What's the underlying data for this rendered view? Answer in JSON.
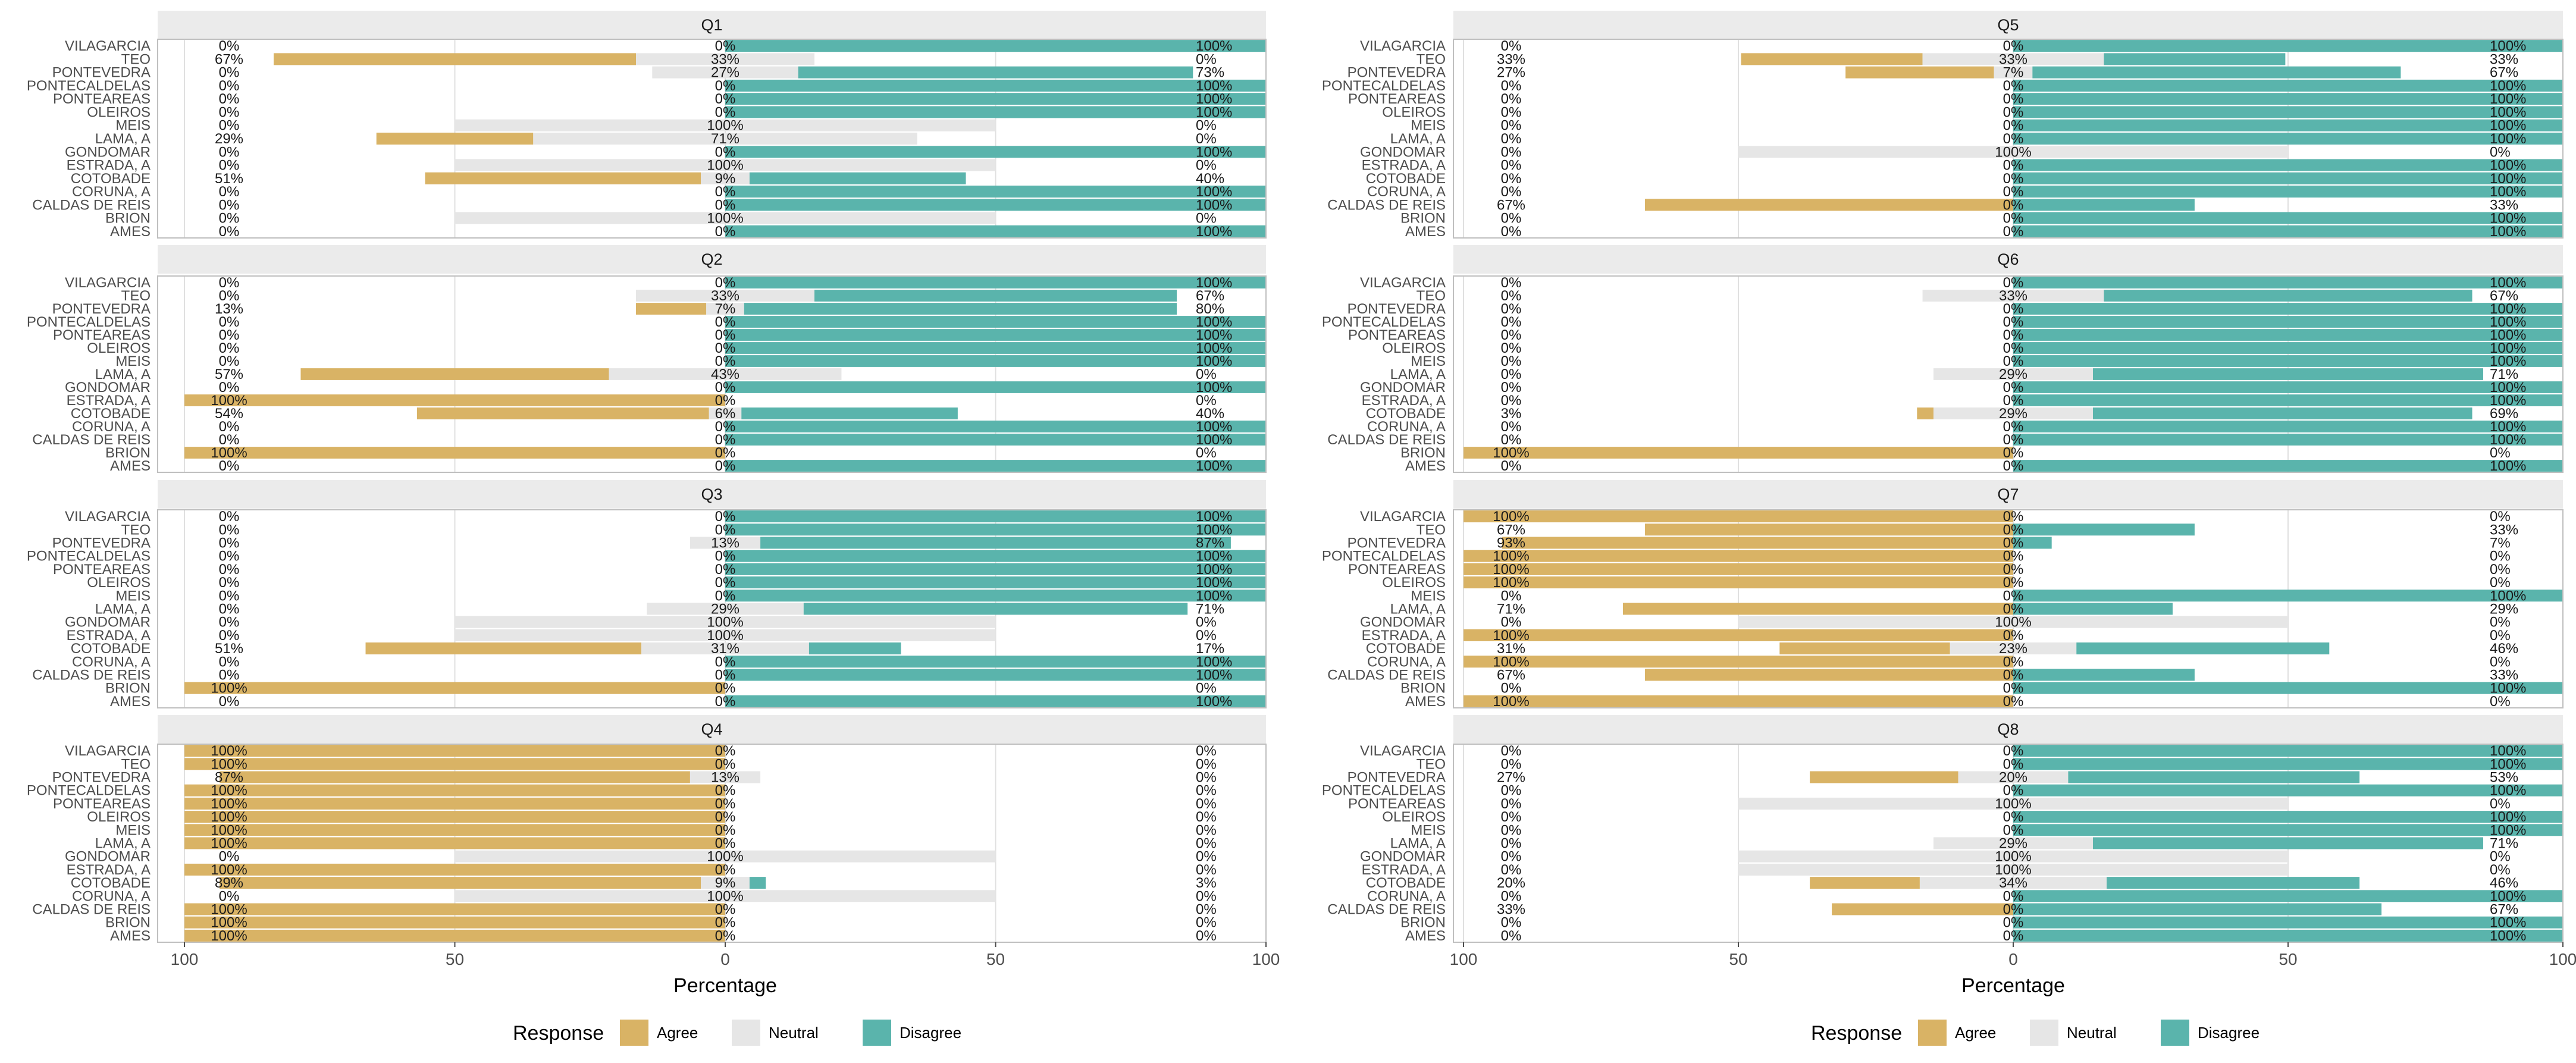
{
  "chart_data": {
    "type": "bar",
    "subtype": "diverging-stacked-horizontal",
    "municipalities": [
      "VILAGARCIA",
      "TEO",
      "PONTEVEDRA",
      "PONTECALDELAS",
      "PONTEAREAS",
      "OLEIROS",
      "MEIS",
      "LAMA, A",
      "GONDOMAR",
      "ESTRADA, A",
      "COTOBADE",
      "CORUNA, A",
      "CALDAS DE REIS",
      "BRION",
      "AMES"
    ],
    "xlabel": "Percentage",
    "xlim": [
      -100,
      100
    ],
    "x_ticks": [
      -100,
      -50,
      0,
      50,
      100
    ],
    "x_tick_labels": [
      "100",
      "50",
      "0",
      "50",
      "100"
    ],
    "legend": {
      "title": "Response",
      "position": "bottom",
      "items": [
        {
          "label": "Agree",
          "color": "#D9B365"
        },
        {
          "label": "Neutral",
          "color": "#E6E6E6"
        },
        {
          "label": "Disagree",
          "color": "#5AB4AC"
        }
      ]
    },
    "colors": {
      "agree": "#D9B365",
      "neutral": "#E6E6E6",
      "disagree": "#5AB4AC",
      "strip": "#EBEBEB",
      "grid": "#E0E0E0",
      "text": "#4D4D4D"
    },
    "panels": [
      {
        "title": "Q1",
        "agree": [
          0,
          67,
          0,
          0,
          0,
          0,
          0,
          29,
          0,
          0,
          51,
          0,
          0,
          0,
          0
        ],
        "neutral": [
          0,
          33,
          27,
          0,
          0,
          0,
          100,
          71,
          0,
          100,
          9,
          0,
          0,
          100,
          0
        ],
        "disagree": [
          100,
          0,
          73,
          100,
          100,
          100,
          0,
          0,
          100,
          0,
          40,
          100,
          100,
          0,
          100
        ],
        "agree_labels": [
          "0%",
          "67%",
          "0%",
          "0%",
          "0%",
          "0%",
          "0%",
          "29%",
          "0%",
          "0%",
          "51%",
          "0%",
          "0%",
          "0%",
          "0%"
        ],
        "neutral_labels": [
          "0%",
          "33%",
          "27%",
          "0%",
          "0%",
          "0%",
          "100%",
          "71%",
          "0%",
          "100%",
          "9%",
          "0%",
          "0%",
          "100%",
          "0%"
        ],
        "disagree_labels": [
          "100%",
          "0%",
          "73%",
          "100%",
          "100%",
          "100%",
          "0%",
          "0%",
          "100%",
          "0%",
          "40%",
          "100%",
          "100%",
          "0%",
          "100%"
        ]
      },
      {
        "title": "Q5",
        "agree": [
          0,
          33,
          27,
          0,
          0,
          0,
          0,
          0,
          0,
          0,
          0,
          0,
          67,
          0,
          0
        ],
        "neutral": [
          0,
          33,
          7,
          0,
          0,
          0,
          0,
          0,
          100,
          0,
          0,
          0,
          0,
          0,
          0
        ],
        "disagree": [
          100,
          33,
          67,
          100,
          100,
          100,
          100,
          100,
          0,
          100,
          100,
          100,
          33,
          100,
          100
        ],
        "agree_labels": [
          "0%",
          "33%",
          "27%",
          "0%",
          "0%",
          "0%",
          "0%",
          "0%",
          "0%",
          "0%",
          "0%",
          "0%",
          "67%",
          "0%",
          "0%"
        ],
        "neutral_labels": [
          "0%",
          "33%",
          "7%",
          "0%",
          "0%",
          "0%",
          "0%",
          "0%",
          "100%",
          "0%",
          "0%",
          "0%",
          "0%",
          "0%",
          "0%"
        ],
        "disagree_labels": [
          "100%",
          "33%",
          "67%",
          "100%",
          "100%",
          "100%",
          "100%",
          "100%",
          "0%",
          "100%",
          "100%",
          "100%",
          "33%",
          "100%",
          "100%"
        ]
      },
      {
        "title": "Q2",
        "agree": [
          0,
          0,
          13,
          0,
          0,
          0,
          0,
          57,
          0,
          100,
          54,
          0,
          0,
          100,
          0
        ],
        "neutral": [
          0,
          33,
          7,
          0,
          0,
          0,
          0,
          43,
          0,
          0,
          6,
          0,
          0,
          0,
          0
        ],
        "disagree": [
          100,
          67,
          80,
          100,
          100,
          100,
          100,
          0,
          100,
          0,
          40,
          100,
          100,
          0,
          100
        ],
        "agree_labels": [
          "0%",
          "0%",
          "13%",
          "0%",
          "0%",
          "0%",
          "0%",
          "57%",
          "0%",
          "100%",
          "54%",
          "0%",
          "0%",
          "100%",
          "0%"
        ],
        "neutral_labels": [
          "0%",
          "33%",
          "7%",
          "0%",
          "0%",
          "0%",
          "0%",
          "43%",
          "0%",
          "0%",
          "6%",
          "0%",
          "0%",
          "0%",
          "0%"
        ],
        "disagree_labels": [
          "100%",
          "67%",
          "80%",
          "100%",
          "100%",
          "100%",
          "100%",
          "0%",
          "100%",
          "0%",
          "40%",
          "100%",
          "100%",
          "0%",
          "100%"
        ]
      },
      {
        "title": "Q6",
        "agree": [
          0,
          0,
          0,
          0,
          0,
          0,
          0,
          0,
          0,
          0,
          3,
          0,
          0,
          100,
          0
        ],
        "neutral": [
          0,
          33,
          0,
          0,
          0,
          0,
          0,
          29,
          0,
          0,
          29,
          0,
          0,
          0,
          0
        ],
        "disagree": [
          100,
          67,
          100,
          100,
          100,
          100,
          100,
          71,
          100,
          100,
          69,
          100,
          100,
          0,
          100
        ],
        "agree_labels": [
          "0%",
          "0%",
          "0%",
          "0%",
          "0%",
          "0%",
          "0%",
          "0%",
          "0%",
          "0%",
          "3%",
          "0%",
          "0%",
          "100%",
          "0%"
        ],
        "neutral_labels": [
          "0%",
          "33%",
          "0%",
          "0%",
          "0%",
          "0%",
          "0%",
          "29%",
          "0%",
          "0%",
          "29%",
          "0%",
          "0%",
          "0%",
          "0%"
        ],
        "disagree_labels": [
          "100%",
          "67%",
          "100%",
          "100%",
          "100%",
          "100%",
          "100%",
          "71%",
          "100%",
          "100%",
          "69%",
          "100%",
          "100%",
          "0%",
          "100%"
        ]
      },
      {
        "title": "Q3",
        "agree": [
          0,
          0,
          0,
          0,
          0,
          0,
          0,
          0,
          0,
          0,
          51,
          0,
          0,
          100,
          0
        ],
        "neutral": [
          0,
          0,
          13,
          0,
          0,
          0,
          0,
          29,
          100,
          100,
          31,
          0,
          0,
          0,
          0
        ],
        "disagree": [
          100,
          100,
          87,
          100,
          100,
          100,
          100,
          71,
          0,
          0,
          17,
          100,
          100,
          0,
          100
        ],
        "agree_labels": [
          "0%",
          "0%",
          "0%",
          "0%",
          "0%",
          "0%",
          "0%",
          "0%",
          "0%",
          "0%",
          "51%",
          "0%",
          "0%",
          "100%",
          "0%"
        ],
        "neutral_labels": [
          "0%",
          "0%",
          "13%",
          "0%",
          "0%",
          "0%",
          "0%",
          "29%",
          "100%",
          "100%",
          "31%",
          "0%",
          "0%",
          "0%",
          "0%"
        ],
        "disagree_labels": [
          "100%",
          "100%",
          "87%",
          "100%",
          "100%",
          "100%",
          "100%",
          "71%",
          "0%",
          "0%",
          "17%",
          "100%",
          "100%",
          "0%",
          "100%"
        ]
      },
      {
        "title": "Q7",
        "agree": [
          100,
          67,
          93,
          100,
          100,
          100,
          0,
          71,
          0,
          100,
          31,
          100,
          67,
          0,
          100
        ],
        "neutral": [
          0,
          0,
          0,
          0,
          0,
          0,
          0,
          0,
          100,
          0,
          23,
          0,
          0,
          0,
          0
        ],
        "disagree": [
          0,
          33,
          7,
          0,
          0,
          0,
          100,
          29,
          0,
          0,
          46,
          0,
          33,
          100,
          0
        ],
        "agree_labels": [
          "100%",
          "67%",
          "93%",
          "100%",
          "100%",
          "100%",
          "0%",
          "71%",
          "0%",
          "100%",
          "31%",
          "100%",
          "67%",
          "0%",
          "100%"
        ],
        "neutral_labels": [
          "0%",
          "0%",
          "0%",
          "0%",
          "0%",
          "0%",
          "0%",
          "0%",
          "100%",
          "0%",
          "23%",
          "0%",
          "0%",
          "0%",
          "0%"
        ],
        "disagree_labels": [
          "0%",
          "33%",
          "7%",
          "0%",
          "0%",
          "0%",
          "100%",
          "29%",
          "0%",
          "0%",
          "46%",
          "0%",
          "33%",
          "100%",
          "0%"
        ]
      },
      {
        "title": "Q4",
        "agree": [
          100,
          100,
          87,
          100,
          100,
          100,
          100,
          100,
          0,
          100,
          89,
          0,
          100,
          100,
          100
        ],
        "neutral": [
          0,
          0,
          13,
          0,
          0,
          0,
          0,
          0,
          100,
          0,
          9,
          100,
          0,
          0,
          0
        ],
        "disagree": [
          0,
          0,
          0,
          0,
          0,
          0,
          0,
          0,
          0,
          0,
          3,
          0,
          0,
          0,
          0
        ],
        "agree_labels": [
          "100%",
          "100%",
          "87%",
          "100%",
          "100%",
          "100%",
          "100%",
          "100%",
          "0%",
          "100%",
          "89%",
          "0%",
          "100%",
          "100%",
          "100%"
        ],
        "neutral_labels": [
          "0%",
          "0%",
          "13%",
          "0%",
          "0%",
          "0%",
          "0%",
          "0%",
          "100%",
          "0%",
          "9%",
          "100%",
          "0%",
          "0%",
          "0%"
        ],
        "disagree_labels": [
          "0%",
          "0%",
          "0%",
          "0%",
          "0%",
          "0%",
          "0%",
          "0%",
          "0%",
          "0%",
          "3%",
          "0%",
          "0%",
          "0%",
          "0%"
        ]
      },
      {
        "title": "Q8",
        "agree": [
          0,
          0,
          27,
          0,
          0,
          0,
          0,
          0,
          0,
          0,
          20,
          0,
          33,
          0,
          0
        ],
        "neutral": [
          0,
          0,
          20,
          0,
          100,
          0,
          0,
          29,
          100,
          100,
          34,
          0,
          0,
          0,
          0
        ],
        "disagree": [
          100,
          100,
          53,
          100,
          0,
          100,
          100,
          71,
          0,
          0,
          46,
          100,
          67,
          100,
          100
        ],
        "agree_labels": [
          "0%",
          "0%",
          "27%",
          "0%",
          "0%",
          "0%",
          "0%",
          "0%",
          "0%",
          "0%",
          "20%",
          "0%",
          "33%",
          "0%",
          "0%"
        ],
        "neutral_labels": [
          "0%",
          "0%",
          "20%",
          "0%",
          "100%",
          "0%",
          "0%",
          "29%",
          "100%",
          "100%",
          "34%",
          "0%",
          "0%",
          "0%",
          "0%"
        ],
        "disagree_labels": [
          "100%",
          "100%",
          "53%",
          "100%",
          "0%",
          "100%",
          "100%",
          "71%",
          "0%",
          "0%",
          "46%",
          "100%",
          "67%",
          "100%",
          "100%"
        ]
      }
    ]
  }
}
